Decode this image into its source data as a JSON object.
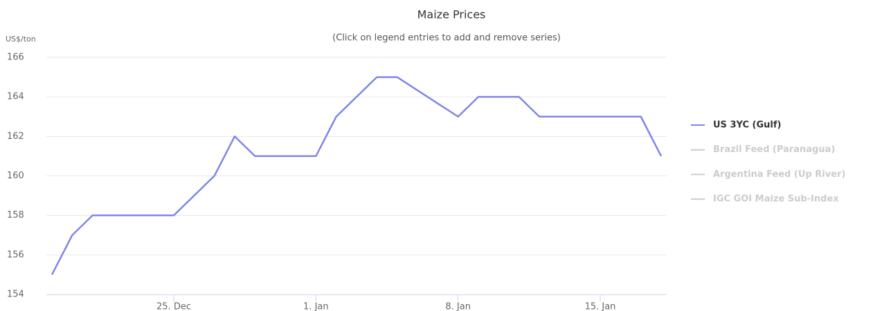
{
  "chart_data": {
    "type": "line",
    "title": "Maize Prices",
    "subtitle": "(Click on legend entries to add and remove series)",
    "y_axis_label": "US$/ton",
    "x": [
      "12-19",
      "12-20",
      "12-21",
      "12-25",
      "12-27",
      "12-28",
      "12-29",
      "01-01",
      "01-02",
      "01-04",
      "01-05",
      "01-08",
      "01-09",
      "01-11",
      "01-12",
      "01-15",
      "01-17",
      "01-18"
    ],
    "series": [
      {
        "name": "US 3YC (Gulf)",
        "color": "#8085e9",
        "visible": true,
        "values": [
          155,
          157,
          158,
          158,
          160,
          162,
          161,
          161,
          163,
          165,
          165,
          163,
          164,
          164,
          163,
          163,
          163,
          161
        ]
      },
      {
        "name": "Brazil Feed (Paranagua)",
        "color": "#cccccc",
        "visible": false
      },
      {
        "name": "Argentina Feed (Up River)",
        "color": "#cccccc",
        "visible": false
      },
      {
        "name": "IGC GOI Maize Sub-Index",
        "color": "#cccccc",
        "visible": false
      }
    ],
    "xlim": [
      "12-19",
      "01-18"
    ],
    "xticks": [
      {
        "value": "12-25",
        "label": "25. Dec"
      },
      {
        "value": "01-01",
        "label": "1. Jan"
      },
      {
        "value": "01-08",
        "label": "8. Jan"
      },
      {
        "value": "01-15",
        "label": "15. Jan"
      }
    ],
    "ylim": [
      154,
      166
    ],
    "yticks": [
      154,
      156,
      158,
      160,
      162,
      164,
      166
    ],
    "grid": true,
    "legend": "right"
  }
}
